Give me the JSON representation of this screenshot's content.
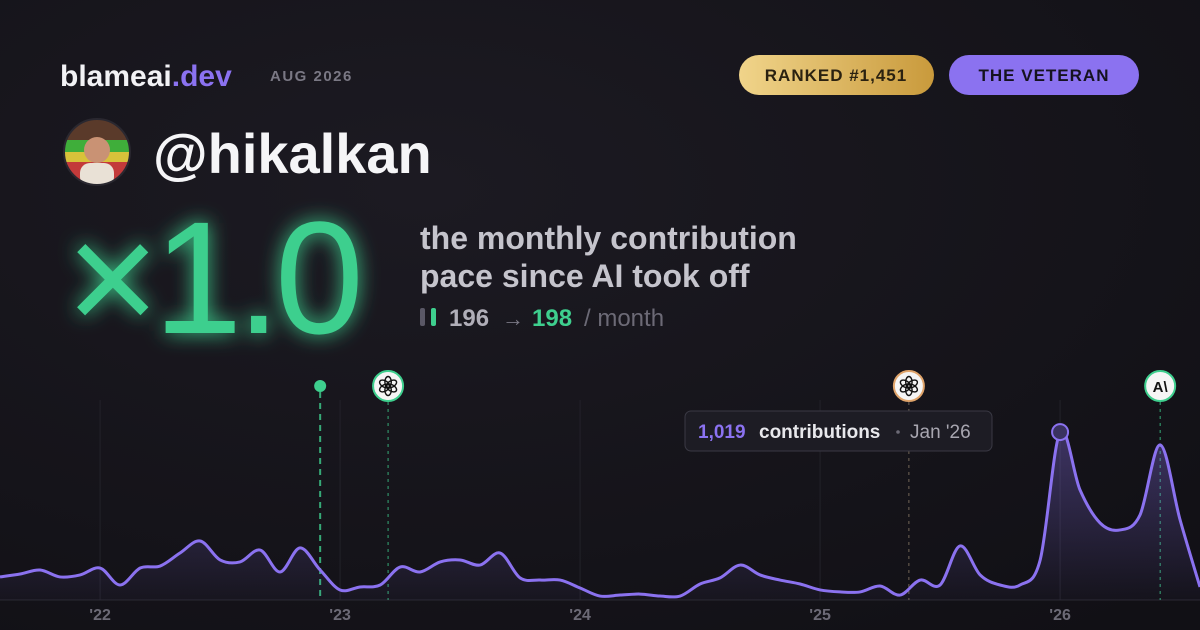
{
  "header": {
    "brand": "blameai",
    "brand_tld": ".dev",
    "period": "AUG 2026",
    "rank_badge": "RANKED #1,451",
    "title_badge": "THE VETERAN"
  },
  "profile": {
    "handle": "@hikalkan"
  },
  "headline": {
    "multiplier": "×1.0",
    "description_lines": [
      "the monthly contribution",
      "pace since AI took off"
    ],
    "before": "196",
    "arrow": "→",
    "after": "198",
    "unit": "/ month"
  },
  "chart_data": {
    "type": "line",
    "color": "#8b72f0",
    "grid": true,
    "x": [
      2021.583,
      2021.667,
      2021.75,
      2021.833,
      2021.917,
      2022,
      2022.083,
      2022.167,
      2022.25,
      2022.333,
      2022.417,
      2022.5,
      2022.583,
      2022.667,
      2022.75,
      2022.833,
      2022.917,
      2023,
      2023.083,
      2023.167,
      2023.25,
      2023.333,
      2023.417,
      2023.5,
      2023.583,
      2023.667,
      2023.75,
      2023.833,
      2023.917,
      2024,
      2024.083,
      2024.167,
      2024.25,
      2024.333,
      2024.417,
      2024.5,
      2024.583,
      2024.667,
      2024.75,
      2024.833,
      2024.917,
      2025,
      2025.083,
      2025.167,
      2025.25,
      2025.333,
      2025.417,
      2025.5,
      2025.583,
      2025.667,
      2025.75,
      2025.833,
      2025.917,
      2026,
      2026.083,
      2026.167,
      2026.25,
      2026.333,
      2026.417,
      2026.5,
      2026.583
    ],
    "values": [
      140,
      158,
      182,
      140,
      152,
      194,
      91,
      194,
      206,
      285,
      358,
      243,
      231,
      303,
      170,
      316,
      182,
      61,
      79,
      91,
      200,
      170,
      231,
      243,
      212,
      285,
      134,
      121,
      121,
      73,
      24,
      30,
      36,
      24,
      24,
      97,
      134,
      212,
      152,
      121,
      97,
      61,
      49,
      49,
      85,
      30,
      121,
      91,
      328,
      152,
      91,
      91,
      243,
      1019,
      668,
      467,
      425,
      516,
      941,
      486,
      79
    ],
    "xlim": [
      2021.583,
      2026.583
    ],
    "ylim": [
      0,
      1250
    ],
    "xticks": [
      {
        "value": 2022,
        "label": "'22"
      },
      {
        "value": 2023,
        "label": "'23"
      },
      {
        "value": 2024,
        "label": "'24"
      },
      {
        "value": 2025,
        "label": "'25"
      },
      {
        "value": 2026,
        "label": "'26"
      }
    ],
    "events": [
      2022.917,
      2023.2,
      2025.37,
      2026.417
    ],
    "tooltip": {
      "value_label": "1,019",
      "unit": "contributions",
      "date": "Jan '26"
    }
  }
}
